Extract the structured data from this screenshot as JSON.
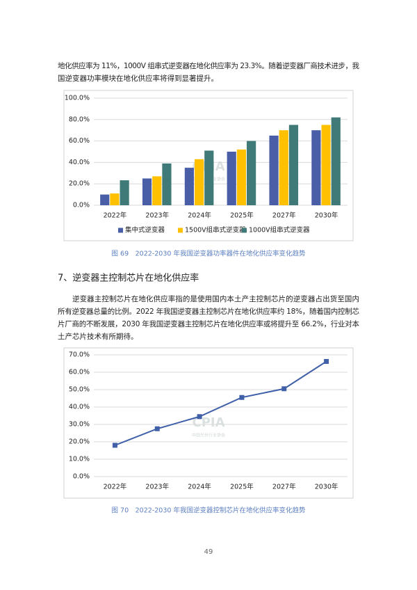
{
  "paragraph_1": [
    "地化供应率为 11%，1000V 组串式逆变器在地化供应率为 23.3%。随着逆变器厂商技术进步，我",
    "国逆变器功率模块在地化供应率将得到显著提升。"
  ],
  "caption_1": "图 69　2022-2030 年我国逆变器功率器件在地化供应率变化趋势",
  "heading": "7、逆变器主控制芯片在地化供应率",
  "paragraph_2": [
    "逆变器主控制芯片在地化供应率指的是使用国内本土产主控制芯片的逆变器占出货至国内",
    "所有逆变器总量的比例。2022 年我国逆变器主控制芯片在地化供应率约 18%，随着国内控制芯",
    "片厂商的不断发展，2030 年我国逆变器主控制芯片在地化供应率或将提升至 66.2%，行业对本",
    "土产芯片技术有所期待。"
  ],
  "caption_2": "图 70　2022-2030 年我国逆变器控制芯片在地化供应率变化趋势",
  "page_number": "49",
  "watermark": {
    "logo": "CPIA",
    "org": "中国光伏行业协会"
  },
  "chart_data": [
    {
      "type": "bar",
      "categories": [
        "2022年",
        "2023年",
        "2024年",
        "2025年",
        "2027年",
        "2030年"
      ],
      "series": [
        {
          "name": "集中式逆变器",
          "color": "#4a5ea8",
          "values": [
            10,
            25,
            35,
            50,
            65,
            70
          ]
        },
        {
          "name": "1500V组串式逆变器",
          "color": "#ffc000",
          "values": [
            11,
            27,
            43,
            52,
            70,
            75
          ]
        },
        {
          "name": "1000V组串式逆变器",
          "color": "#3f7a78",
          "values": [
            23.3,
            39,
            51,
            60,
            75,
            82
          ]
        }
      ],
      "ylim": [
        0,
        100
      ],
      "yticks": [
        {
          "value": 0,
          "label": "0.0%"
        },
        {
          "value": 20,
          "label": "20.0%"
        },
        {
          "value": 40,
          "label": "40.0%"
        },
        {
          "value": 60,
          "label": "60.0%"
        },
        {
          "value": 80,
          "label": "80.0%"
        },
        {
          "value": 100,
          "label": "100.0%"
        }
      ],
      "grid": true,
      "legend": "bottom"
    },
    {
      "type": "line",
      "categories": [
        "2022年",
        "2023年",
        "2024年",
        "2025年",
        "2027年",
        "2030年"
      ],
      "values": [
        18,
        27.5,
        34.5,
        45.5,
        50.5,
        66.2
      ],
      "color": "#4060a8",
      "ylim": [
        0,
        70
      ],
      "yticks": [
        {
          "value": 0,
          "label": "0.0%"
        },
        {
          "value": 10,
          "label": "10.0%"
        },
        {
          "value": 20,
          "label": "20.0%"
        },
        {
          "value": 30,
          "label": "30.0%"
        },
        {
          "value": 40,
          "label": "40.0%"
        },
        {
          "value": 50,
          "label": "50.0%"
        },
        {
          "value": 60,
          "label": "60.0%"
        },
        {
          "value": 70,
          "label": "70.0%"
        }
      ],
      "grid": true
    }
  ]
}
